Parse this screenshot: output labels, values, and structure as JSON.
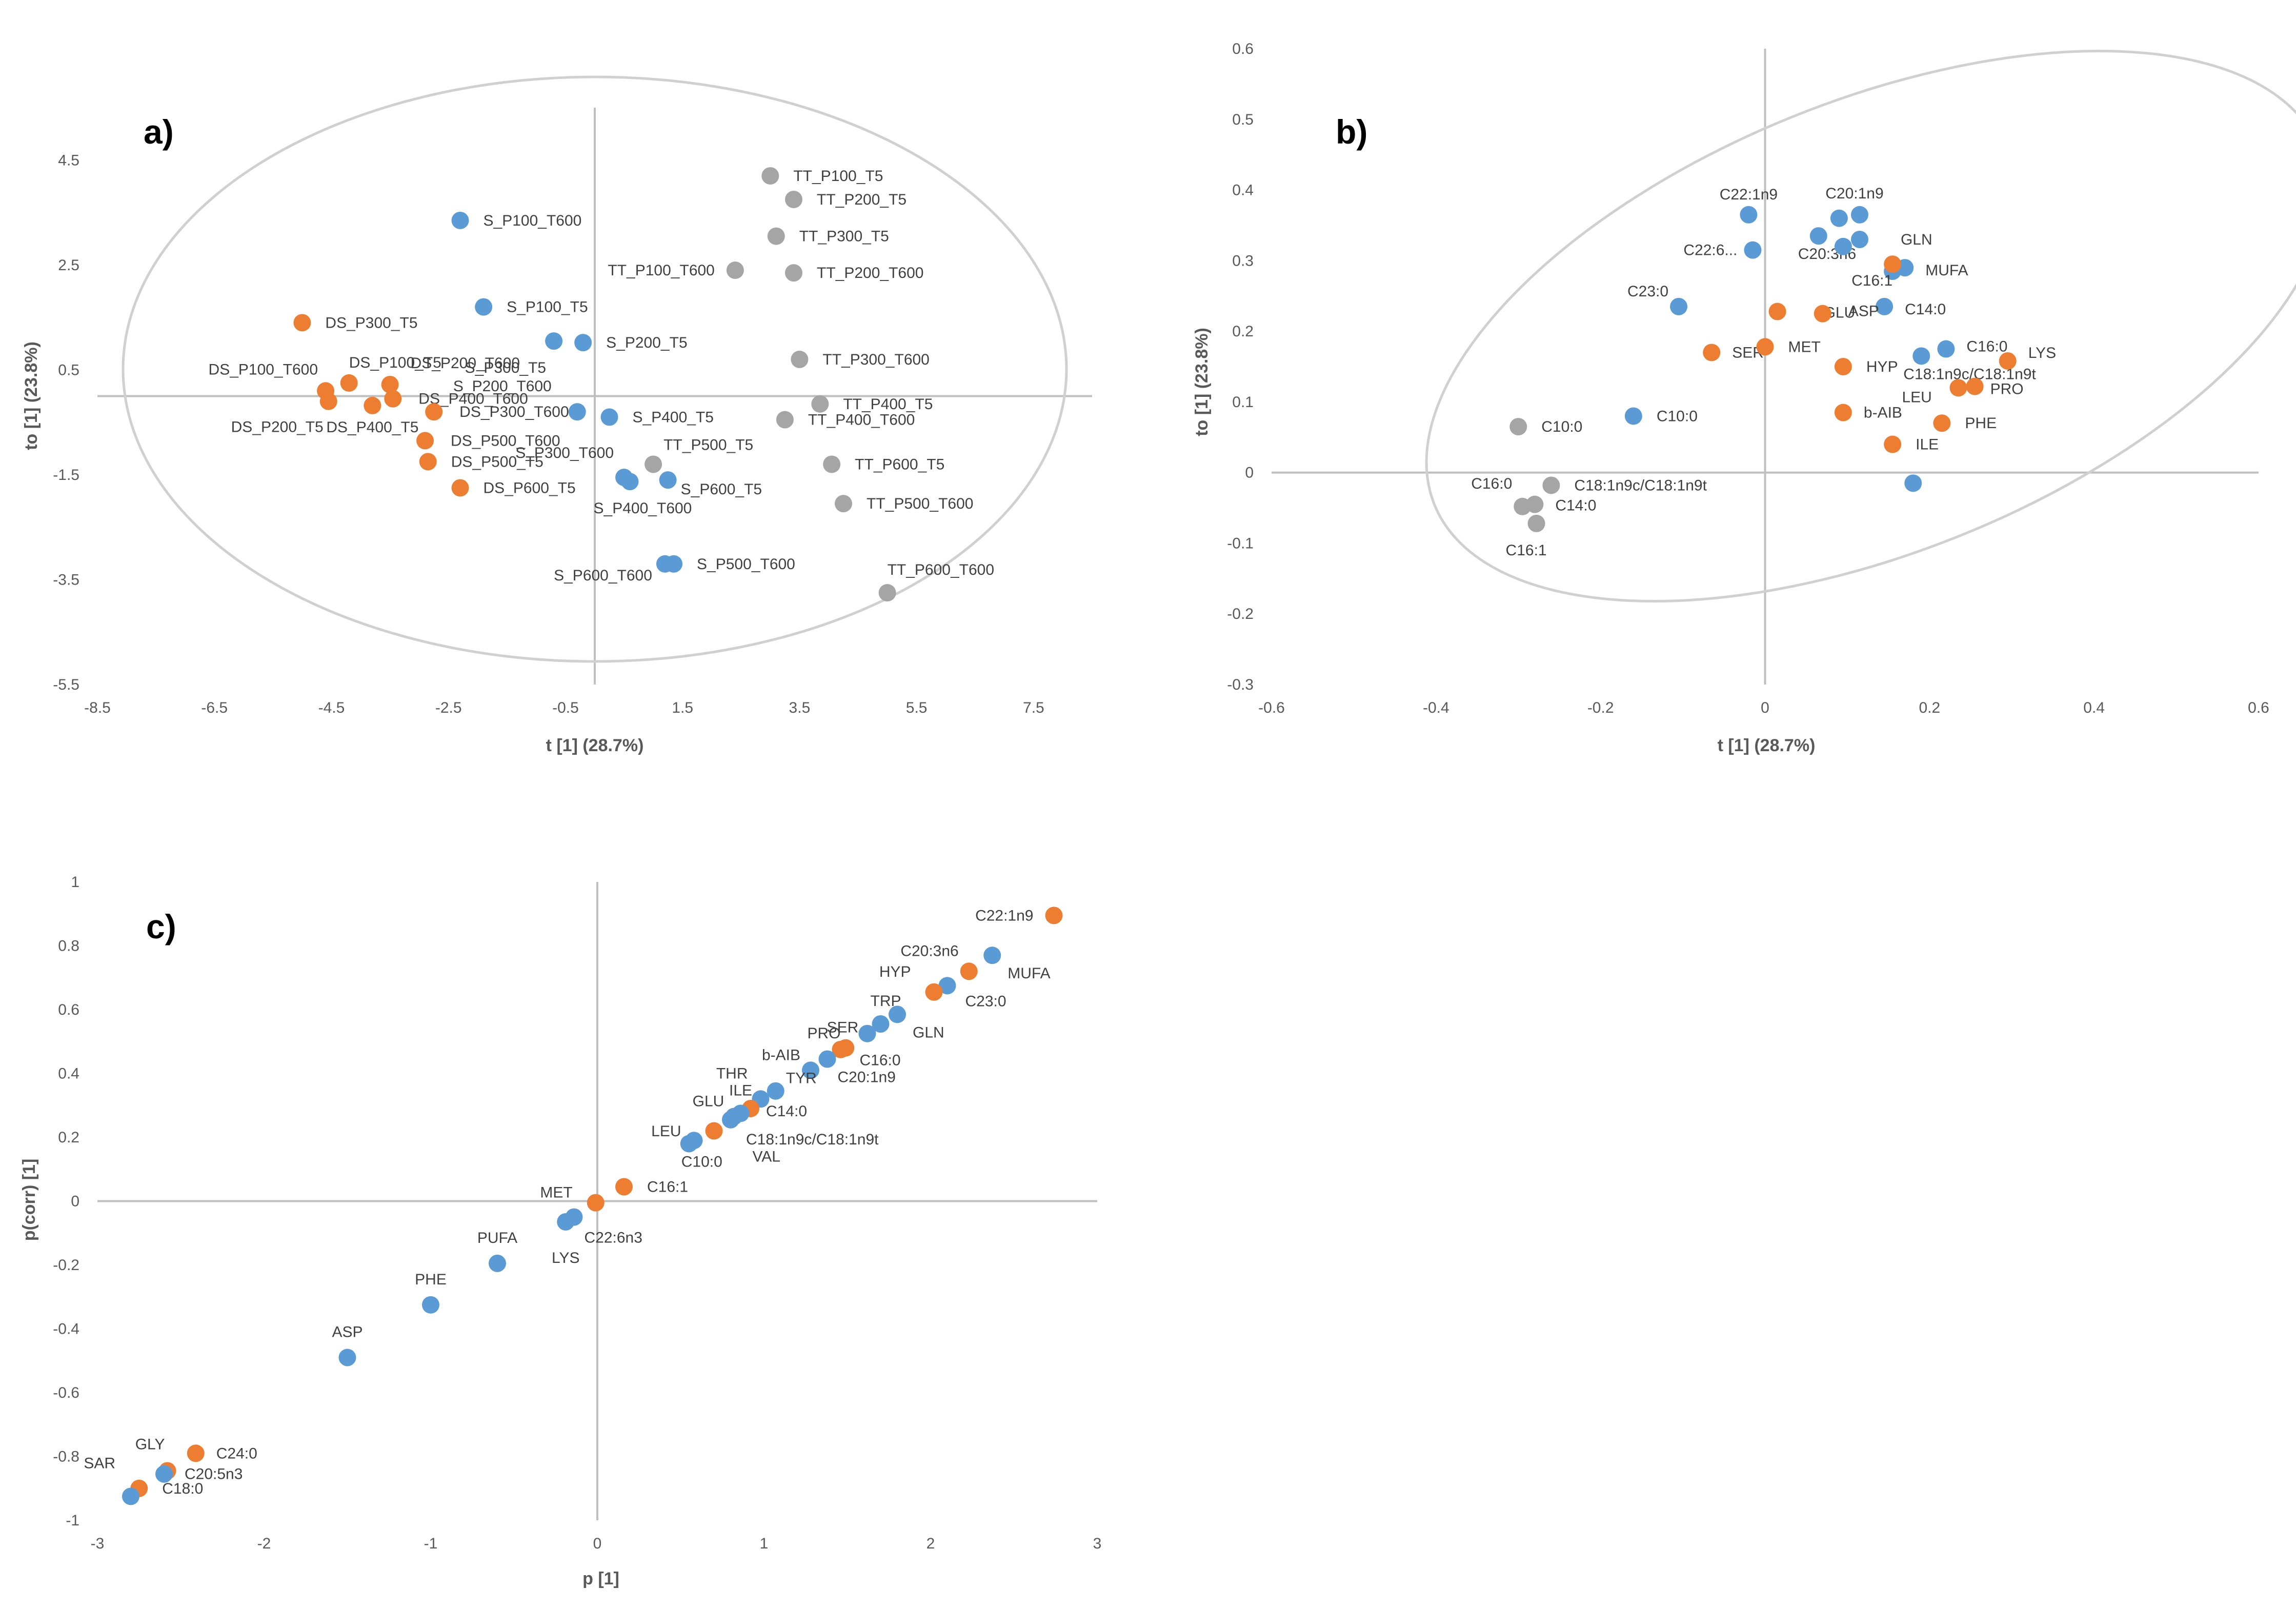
{
  "colors": {
    "blue": "#5b9bd5",
    "orange": "#ed7d31",
    "gray": "#a5a5a5",
    "axis": "#bfbfbf",
    "text": "#404040"
  },
  "chart_data": [
    {
      "type": "scatter",
      "panel_label": "a)",
      "xlabel": "t [1] (28.7%)",
      "ylabel": "to [1] (23.8%)",
      "xlim": [
        -8.5,
        8.5
      ],
      "ylim": [
        -5.5,
        5.5
      ],
      "xticks": [
        "-8.5",
        "-6.5",
        "-4.5",
        "-2.5",
        "-0.5",
        "1.5",
        "3.5",
        "5.5",
        "7.5"
      ],
      "yticks": [
        "4.5",
        "2.5",
        "0.5",
        "-1.5",
        "-3.5",
        "-5.5"
      ],
      "points": [
        {
          "label": "S_P100_T600",
          "x": -2.3,
          "y": 3.35,
          "color": "blue"
        },
        {
          "label": "S_P100_T5",
          "x": -1.9,
          "y": 1.7,
          "color": "blue"
        },
        {
          "label": "S_P300_T5",
          "x": -0.7,
          "y": 1.05,
          "color": "blue"
        },
        {
          "label": "S_P200_T5",
          "x": -0.2,
          "y": 1.02,
          "color": "blue"
        },
        {
          "label": "S_P200_T600",
          "x": -0.3,
          "y": -0.3,
          "color": "blue"
        },
        {
          "label": "S_P400_T5",
          "x": 0.25,
          "y": -0.4,
          "color": "blue"
        },
        {
          "label": "S_P300_T600",
          "x": 0.5,
          "y": -1.55,
          "color": "blue"
        },
        {
          "label": "S_P400_T600",
          "x": 0.6,
          "y": -1.63,
          "color": "blue"
        },
        {
          "label": "S_P600_T5",
          "x": 1.25,
          "y": -1.6,
          "color": "blue"
        },
        {
          "label": "S_P500_T600",
          "x": 1.35,
          "y": -3.2,
          "color": "blue"
        },
        {
          "label": "S_P600_T600",
          "x": 1.2,
          "y": -3.2,
          "color": "blue"
        },
        {
          "label": "DS_P300_T5",
          "x": -5.0,
          "y": 1.4,
          "color": "orange"
        },
        {
          "label": "DS_P100_T600",
          "x": -4.6,
          "y": 0.1,
          "color": "orange"
        },
        {
          "label": "DS_P200_T5",
          "x": -4.55,
          "y": -0.1,
          "color": "orange"
        },
        {
          "label": "DS_P100_T5",
          "x": -4.2,
          "y": 0.25,
          "color": "orange"
        },
        {
          "label": "DS_P400_T5",
          "x": -3.8,
          "y": -0.18,
          "color": "orange"
        },
        {
          "label": "DS_P200_T600",
          "x": -3.5,
          "y": 0.22,
          "color": "orange"
        },
        {
          "label": "DS_P400_T600",
          "x": -3.45,
          "y": -0.05,
          "color": "orange"
        },
        {
          "label": "DS_P300_T600",
          "x": -2.75,
          "y": -0.3,
          "color": "orange"
        },
        {
          "label": "DS_P500_T600",
          "x": -2.9,
          "y": -0.85,
          "color": "orange"
        },
        {
          "label": "DS_P500_T5",
          "x": -2.85,
          "y": -1.25,
          "color": "orange"
        },
        {
          "label": "DS_P600_T5",
          "x": -2.3,
          "y": -1.75,
          "color": "orange"
        },
        {
          "label": "TT_P100_T5",
          "x": 3.0,
          "y": 4.2,
          "color": "gray"
        },
        {
          "label": "TT_P200_T5",
          "x": 3.4,
          "y": 3.75,
          "color": "gray"
        },
        {
          "label": "TT_P300_T5",
          "x": 3.1,
          "y": 3.05,
          "color": "gray"
        },
        {
          "label": "TT_P100_T600",
          "x": 2.4,
          "y": 2.4,
          "color": "gray"
        },
        {
          "label": "TT_P200_T600",
          "x": 3.4,
          "y": 2.35,
          "color": "gray"
        },
        {
          "label": "TT_P300_T600",
          "x": 3.5,
          "y": 0.7,
          "color": "gray"
        },
        {
          "label": "TT_P400_T5",
          "x": 3.85,
          "y": -0.15,
          "color": "gray"
        },
        {
          "label": "TT_P400_T600",
          "x": 3.25,
          "y": -0.45,
          "color": "gray"
        },
        {
          "label": "TT_P500_T5",
          "x": 1.0,
          "y": -1.3,
          "color": "gray"
        },
        {
          "label": "TT_P600_T5",
          "x": 4.05,
          "y": -1.3,
          "color": "gray"
        },
        {
          "label": "TT_P500_T600",
          "x": 4.25,
          "y": -2.05,
          "color": "gray"
        },
        {
          "label": "TT_P600_T600",
          "x": 5.0,
          "y": -3.75,
          "color": "gray"
        }
      ]
    },
    {
      "type": "scatter",
      "panel_label": "b)",
      "xlabel": "t [1] (28.7%)",
      "ylabel": "to [1] (23.8%)",
      "xlim": [
        -0.6,
        0.6
      ],
      "ylim": [
        -0.3,
        0.6
      ],
      "xticks": [
        "-0.6",
        "-0.4",
        "-0.2",
        "0",
        "0.2",
        "0.4",
        "0.6"
      ],
      "yticks": [
        "0.6",
        "0.5",
        "0.4",
        "0.3",
        "0.2",
        "0.1",
        "0",
        "-0.1",
        "-0.2",
        "-0.3"
      ],
      "points": [
        {
          "label": "C22:1n9",
          "x": -0.02,
          "y": 0.365,
          "color": "blue"
        },
        {
          "label": "C20:1n9",
          "x": 0.115,
          "y": 0.365,
          "color": "blue"
        },
        {
          "label": "",
          "x": 0.09,
          "y": 0.36,
          "color": "blue"
        },
        {
          "label": "C20:3n6",
          "x": 0.065,
          "y": 0.335,
          "color": "blue"
        },
        {
          "label": "",
          "x": 0.095,
          "y": 0.32,
          "color": "blue"
        },
        {
          "label": "GLN",
          "x": 0.115,
          "y": 0.33,
          "color": "blue"
        },
        {
          "label": "C22:6...",
          "x": -0.015,
          "y": 0.315,
          "color": "blue"
        },
        {
          "label": "C16:1",
          "x": 0.155,
          "y": 0.285,
          "color": "blue"
        },
        {
          "label": "MUFA",
          "x": 0.17,
          "y": 0.29,
          "color": "blue"
        },
        {
          "label": "C23:0",
          "x": -0.105,
          "y": 0.235,
          "color": "blue"
        },
        {
          "label": "C14:0",
          "x": 0.145,
          "y": 0.235,
          "color": "blue"
        },
        {
          "label": "C16:0",
          "x": 0.22,
          "y": 0.175,
          "color": "blue"
        },
        {
          "label": "C18:1n9c/C18:1n9t",
          "x": 0.19,
          "y": 0.165,
          "color": "blue"
        },
        {
          "label": "C10:0",
          "x": -0.16,
          "y": 0.08,
          "color": "blue"
        },
        {
          "label": "",
          "x": 0.18,
          "y": -0.015,
          "color": "blue"
        },
        {
          "label": "",
          "x": 0.155,
          "y": 0.295,
          "color": "orange"
        },
        {
          "label": "GLU",
          "x": 0.015,
          "y": 0.228,
          "color": "orange"
        },
        {
          "label": "ASP",
          "x": 0.07,
          "y": 0.225,
          "color": "orange"
        },
        {
          "label": "SER",
          "x": -0.065,
          "y": 0.17,
          "color": "orange"
        },
        {
          "label": "MET",
          "x": 0.0,
          "y": 0.178,
          "color": "orange"
        },
        {
          "label": "HYP",
          "x": 0.095,
          "y": 0.15,
          "color": "orange"
        },
        {
          "label": "LYS",
          "x": 0.295,
          "y": 0.158,
          "color": "orange"
        },
        {
          "label": "LEU",
          "x": 0.235,
          "y": 0.12,
          "color": "orange"
        },
        {
          "label": "PRO",
          "x": 0.255,
          "y": 0.122,
          "color": "orange"
        },
        {
          "label": "b-AIB",
          "x": 0.095,
          "y": 0.085,
          "color": "orange"
        },
        {
          "label": "PHE",
          "x": 0.215,
          "y": 0.07,
          "color": "orange"
        },
        {
          "label": "ILE",
          "x": 0.155,
          "y": 0.04,
          "color": "orange"
        },
        {
          "label": "C10:0",
          "x": -0.3,
          "y": 0.065,
          "color": "gray"
        },
        {
          "label": "C18:1n9c/C18:1n9t",
          "x": -0.26,
          "y": -0.018,
          "color": "gray"
        },
        {
          "label": "C16:0",
          "x": -0.295,
          "y": -0.048,
          "color": "gray"
        },
        {
          "label": "C14:0",
          "x": -0.28,
          "y": -0.045,
          "color": "gray"
        },
        {
          "label": "C16:1",
          "x": -0.278,
          "y": -0.072,
          "color": "gray"
        }
      ]
    },
    {
      "type": "scatter",
      "panel_label": "c)",
      "xlabel": "p [1]",
      "ylabel": "p(corr) [1]",
      "xlim": [
        -3,
        3
      ],
      "ylim": [
        -1,
        1
      ],
      "xticks": [
        "-3",
        "-2",
        "-1",
        "0",
        "1",
        "2",
        "3"
      ],
      "yticks": [
        "1",
        "0.8",
        "0.6",
        "0.4",
        "0.2",
        "0",
        "-0.2",
        "-0.4",
        "-0.6",
        "-0.8",
        "-1"
      ],
      "points": [
        {
          "label": "C22:1n9",
          "x": 2.74,
          "y": 0.895,
          "color": "orange"
        },
        {
          "label": "MUFA",
          "x": 2.37,
          "y": 0.77,
          "color": "blue"
        },
        {
          "label": "C20:3n6",
          "x": 2.23,
          "y": 0.72,
          "color": "orange"
        },
        {
          "label": "C23:0",
          "x": 2.1,
          "y": 0.675,
          "color": "blue"
        },
        {
          "label": "HYP",
          "x": 2.02,
          "y": 0.655,
          "color": "orange"
        },
        {
          "label": "GLN",
          "x": 1.8,
          "y": 0.585,
          "color": "blue"
        },
        {
          "label": "TRP",
          "x": 1.7,
          "y": 0.555,
          "color": "blue"
        },
        {
          "label": "C16:0",
          "x": 1.62,
          "y": 0.525,
          "color": "blue"
        },
        {
          "label": "SER",
          "x": 1.49,
          "y": 0.48,
          "color": "orange"
        },
        {
          "label": "PRO",
          "x": 1.46,
          "y": 0.475,
          "color": "orange"
        },
        {
          "label": "C20:1n9",
          "x": 1.38,
          "y": 0.445,
          "color": "blue"
        },
        {
          "label": "b-AIB",
          "x": 1.28,
          "y": 0.41,
          "color": "blue"
        },
        {
          "label": "TYR",
          "x": 1.07,
          "y": 0.345,
          "color": "blue"
        },
        {
          "label": "THR",
          "x": 0.98,
          "y": 0.32,
          "color": "blue"
        },
        {
          "label": "C14:0",
          "x": 0.92,
          "y": 0.29,
          "color": "orange"
        },
        {
          "label": "ILE",
          "x": 0.86,
          "y": 0.275,
          "color": "blue"
        },
        {
          "label": "GLU",
          "x": 0.82,
          "y": 0.265,
          "color": "blue"
        },
        {
          "label": "C18:1n9c/C18:1n9t",
          "x": 0.8,
          "y": 0.255,
          "color": "blue"
        },
        {
          "label": "VAL",
          "x": 0.7,
          "y": 0.22,
          "color": "orange"
        },
        {
          "label": "LEU",
          "x": 0.58,
          "y": 0.19,
          "color": "blue"
        },
        {
          "label": "C10:0",
          "x": 0.55,
          "y": 0.18,
          "color": "blue"
        },
        {
          "label": "C16:1",
          "x": 0.16,
          "y": 0.045,
          "color": "orange"
        },
        {
          "label": "MET",
          "x": -0.01,
          "y": -0.005,
          "color": "orange"
        },
        {
          "label": "C22:6n3",
          "x": -0.14,
          "y": -0.05,
          "color": "blue"
        },
        {
          "label": "LYS",
          "x": -0.19,
          "y": -0.065,
          "color": "blue"
        },
        {
          "label": "PUFA",
          "x": -0.6,
          "y": -0.195,
          "color": "blue"
        },
        {
          "label": "PHE",
          "x": -1.0,
          "y": -0.325,
          "color": "blue"
        },
        {
          "label": "ASP",
          "x": -1.5,
          "y": -0.49,
          "color": "blue"
        },
        {
          "label": "C24:0",
          "x": -2.41,
          "y": -0.79,
          "color": "orange"
        },
        {
          "label": "GLY",
          "x": -2.58,
          "y": -0.845,
          "color": "orange"
        },
        {
          "label": "C20:5n3",
          "x": -2.6,
          "y": -0.855,
          "color": "blue"
        },
        {
          "label": "C18:0",
          "x": -2.75,
          "y": -0.9,
          "color": "orange"
        },
        {
          "label": "SAR",
          "x": -2.8,
          "y": -0.925,
          "color": "blue"
        }
      ]
    }
  ]
}
